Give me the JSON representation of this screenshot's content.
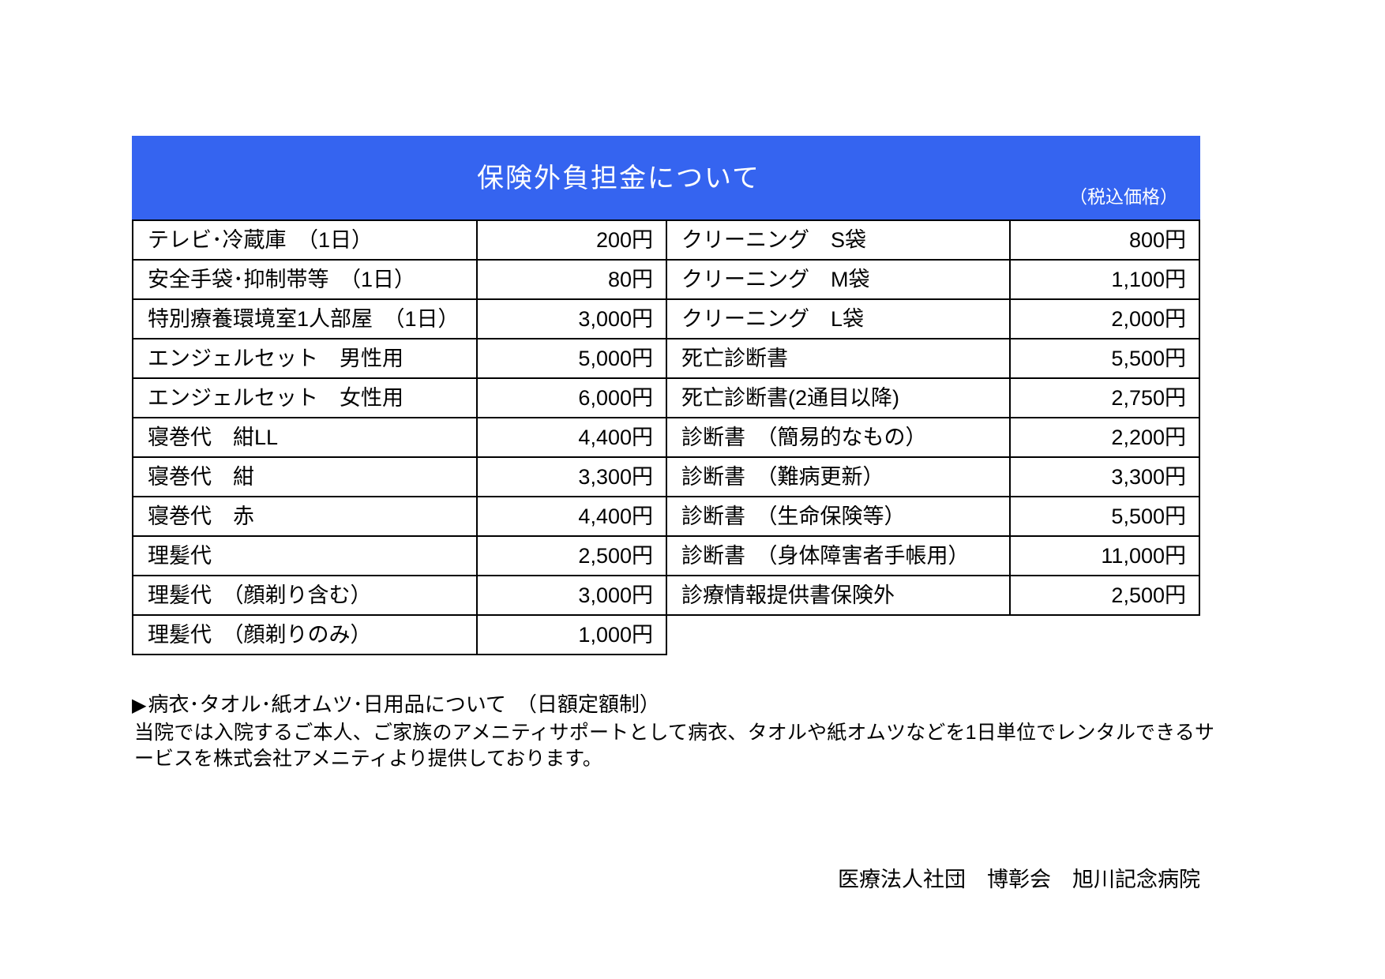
{
  "page": {
    "accent_color": "#3564F0",
    "title": "保険外負担金について",
    "tax_note": "（税込価格）"
  },
  "table": {
    "left_rows": [
      {
        "item": "テレビ･冷蔵庫　（1日）",
        "price": "200円"
      },
      {
        "item": "安全手袋･抑制帯等　（1日）",
        "price": "80円"
      },
      {
        "item": "特別療養環境室1人部屋　（1日）",
        "price": "3,000円"
      },
      {
        "item": "エンジェルセット　男性用",
        "price": "5,000円"
      },
      {
        "item": "エンジェルセット　女性用",
        "price": "6,000円"
      },
      {
        "item": "寝巻代　紺LL",
        "price": "4,400円"
      },
      {
        "item": "寝巻代　紺",
        "price": "3,300円"
      },
      {
        "item": "寝巻代　赤",
        "price": "4,400円"
      },
      {
        "item": "理髪代",
        "price": "2,500円"
      },
      {
        "item": "理髪代　（顔剃り含む）",
        "price": "3,000円"
      },
      {
        "item": "理髪代　（顔剃りのみ）",
        "price": "1,000円"
      }
    ],
    "right_rows": [
      {
        "item": "クリーニング　S袋",
        "price": "800円"
      },
      {
        "item": "クリーニング　M袋",
        "price": "1,100円"
      },
      {
        "item": "クリーニング　L袋",
        "price": "2,000円"
      },
      {
        "item": "死亡診断書",
        "price": "5,500円"
      },
      {
        "item": "死亡診断書(2通目以降)",
        "price": "2,750円"
      },
      {
        "item": "診断書　（簡易的なもの）",
        "price": "2,200円"
      },
      {
        "item": "診断書　（難病更新）",
        "price": "3,300円"
      },
      {
        "item": "診断書　（生命保険等）",
        "price": "5,500円"
      },
      {
        "item": "診断書　（身体障害者手帳用）",
        "price": "11,000円"
      },
      {
        "item": "診療情報提供書保険外",
        "price": "2,500円"
      }
    ]
  },
  "footer": {
    "bullet_icon": "▶",
    "rental_heading": "病衣･タオル･紙オムツ･日用品について　（日額定額制）",
    "rental_description": "当院では入院するご本人、ご家族のアメニティサポートとして病衣、タオルや紙オムツなどを1日単位でレンタルできるサービスを株式会社アメニティより提供しております。",
    "hospital_name": "医療法人社団　博彰会　旭川記念病院"
  }
}
